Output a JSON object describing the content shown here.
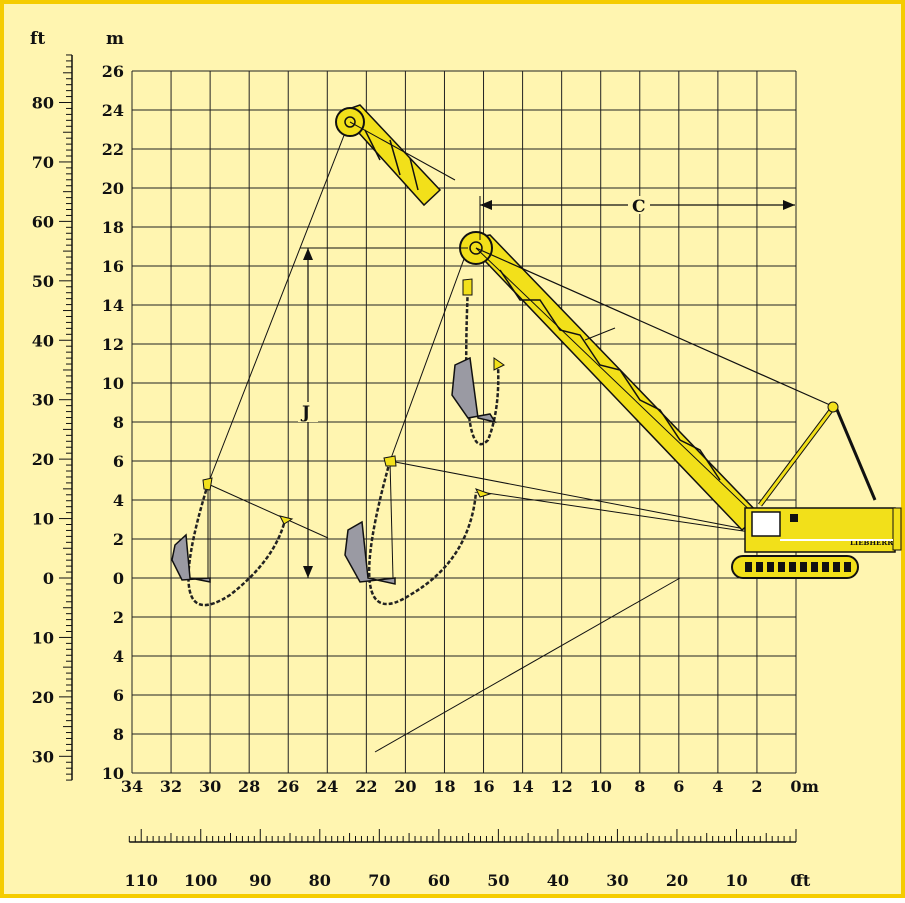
{
  "colors": {
    "background": "#fff5b0",
    "frame": "#f5cc00",
    "machine": "#f2e01a",
    "bucket": "#9a9aa3",
    "line": "#111111"
  },
  "labels": {
    "ft_unit": "ft",
    "m_unit": "m",
    "dim_c": "C",
    "dim_j": "J",
    "bottom_m_unit": "m",
    "bottom_ft_unit": "ft",
    "brand": "LIEBHERR"
  },
  "axes": {
    "left_m_ticks": [
      "26",
      "24",
      "22",
      "20",
      "18",
      "16",
      "14",
      "12",
      "10",
      "8",
      "6",
      "4",
      "2",
      "0",
      "2",
      "4",
      "6",
      "8",
      "10"
    ],
    "left_ft_ticks": [
      "80",
      "70",
      "60",
      "50",
      "40",
      "30",
      "20",
      "10",
      "0",
      "10",
      "20",
      "30"
    ],
    "bottom_m_ticks": [
      "34",
      "32",
      "30",
      "28",
      "26",
      "24",
      "22",
      "20",
      "18",
      "16",
      "14",
      "12",
      "10",
      "8",
      "6",
      "4",
      "2",
      "0"
    ],
    "bottom_ft_ticks": [
      "110",
      "100",
      "90",
      "80",
      "70",
      "60",
      "50",
      "40",
      "30",
      "20",
      "10",
      "0"
    ]
  }
}
